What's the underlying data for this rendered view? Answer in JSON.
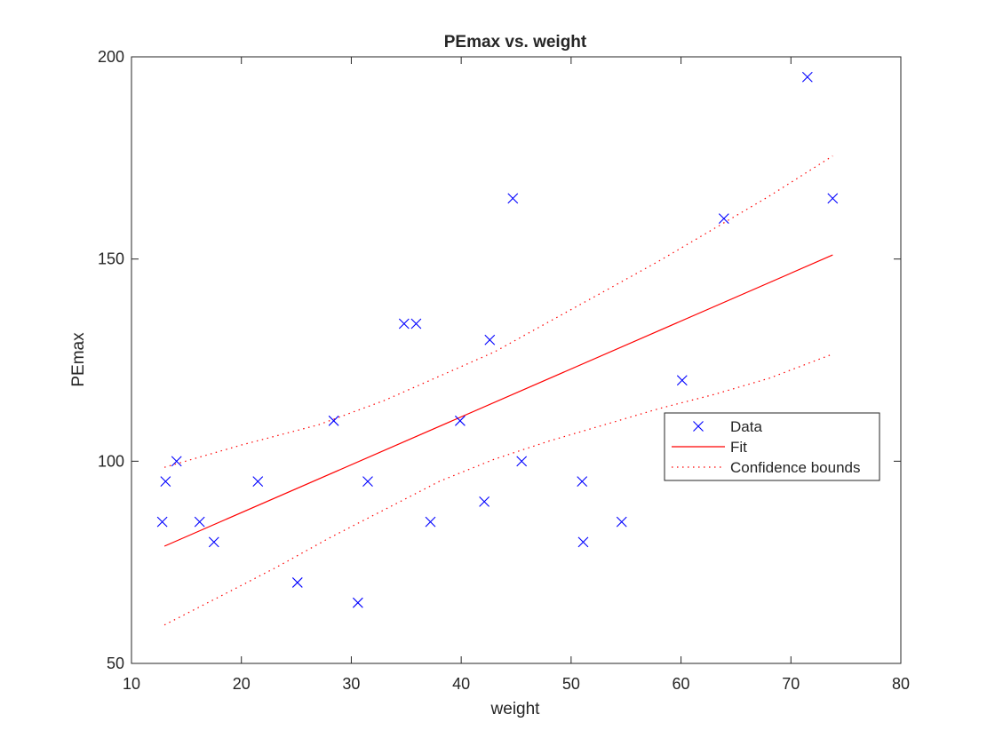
{
  "chart_data": {
    "type": "scatter",
    "title": "PEmax vs. weight",
    "xlabel": "weight",
    "ylabel": "PEmax",
    "xlim": [
      10,
      80
    ],
    "ylim": [
      50,
      200
    ],
    "xticks": [
      10,
      20,
      30,
      40,
      50,
      60,
      70,
      80
    ],
    "yticks": [
      50,
      100,
      150,
      200
    ],
    "grid": false,
    "legend_position": "right",
    "series": [
      {
        "name": "Data",
        "style": "marker-x",
        "color": "#0000ff",
        "x": [
          12.8,
          13.1,
          14.1,
          16.2,
          17.5,
          21.5,
          25.1,
          28.4,
          30.6,
          31.5,
          34.8,
          35.9,
          37.2,
          39.9,
          42.1,
          42.6,
          44.7,
          45.5,
          51.0,
          51.1,
          54.6,
          60.1,
          63.9,
          71.5,
          73.8
        ],
        "y": [
          85,
          95,
          100,
          85,
          80,
          95,
          70,
          110,
          65,
          95,
          134,
          134,
          85,
          110,
          90,
          130,
          165,
          100,
          95,
          80,
          85,
          120,
          160,
          195,
          165
        ]
      },
      {
        "name": "Fit",
        "style": "solid",
        "color": "#ff0000",
        "x": [
          13.0,
          73.8
        ],
        "y": [
          79.0,
          151.0
        ]
      },
      {
        "name": "Confidence bounds",
        "style": "dotted",
        "color": "#ff0000",
        "upper": {
          "x": [
            13.0,
            20.0,
            27.0,
            33.0,
            38.0,
            43.0,
            48.0,
            53.0,
            58.0,
            63.0,
            68.0,
            73.8
          ],
          "y": [
            98.5,
            104.0,
            109.0,
            115.0,
            121.0,
            127.0,
            134.5,
            142.0,
            149.5,
            157.5,
            165.5,
            175.5
          ]
        },
        "lower": {
          "x": [
            13.0,
            18.0,
            23.0,
            28.0,
            33.0,
            38.0,
            43.0,
            48.0,
            53.0,
            58.0,
            63.0,
            68.0,
            73.8
          ],
          "y": [
            59.5,
            66.5,
            73.5,
            81.0,
            88.0,
            95.0,
            100.5,
            105.0,
            109.0,
            113.0,
            116.5,
            120.5,
            126.5
          ]
        }
      }
    ]
  }
}
